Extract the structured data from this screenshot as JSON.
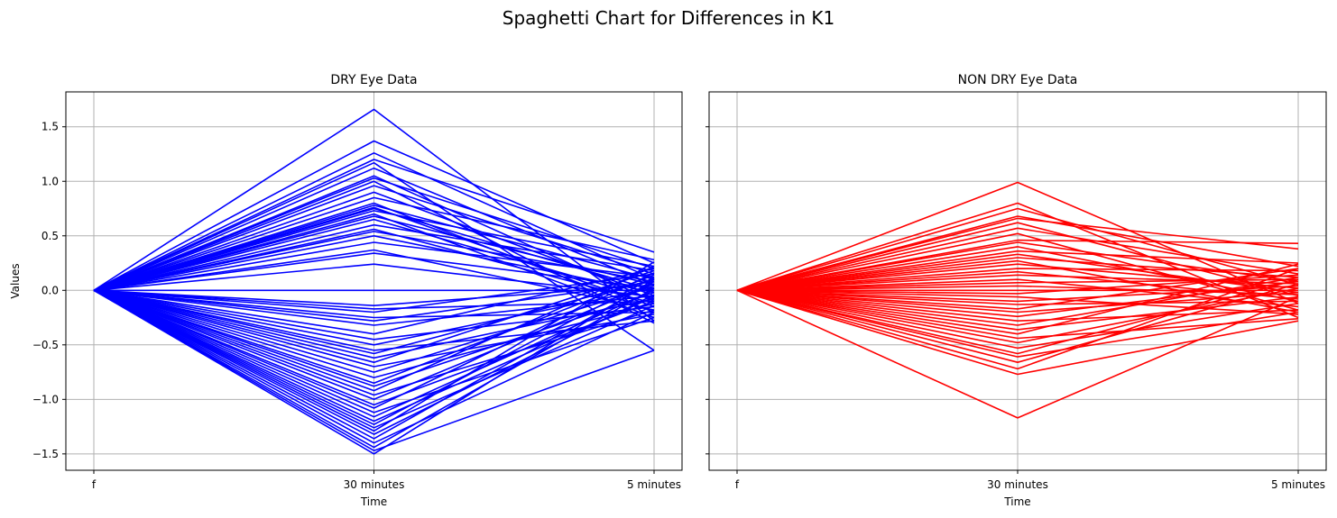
{
  "figure": {
    "suptitle": "Spaghetti Chart for Differences in K1"
  },
  "chart_data": [
    {
      "type": "line",
      "title": "DRY Eye Data",
      "xlabel": "Time",
      "ylabel": "Values",
      "x": [
        "f",
        "30 minutes",
        "5 minutes"
      ],
      "ylim": [
        -1.65,
        1.82
      ],
      "yticks": [
        -1.5,
        -1.0,
        -0.5,
        0.0,
        0.5,
        1.0,
        1.5
      ],
      "ytick_labels": [
        "−1.5",
        "−1.0",
        "−0.5",
        "0.0",
        "0.5",
        "1.0",
        "1.5"
      ],
      "grid": true,
      "color": "#0000ff",
      "series": [
        {
          "values": [
            0,
            1.66,
            -0.28
          ]
        },
        {
          "values": [
            0,
            1.37,
            0.25
          ]
        },
        {
          "values": [
            0,
            1.26,
            0.1
          ]
        },
        {
          "values": [
            0,
            1.2,
            0.35
          ]
        },
        {
          "values": [
            0,
            1.17,
            -0.55
          ]
        },
        {
          "values": [
            0,
            1.12,
            0.05
          ]
        },
        {
          "values": [
            0,
            1.05,
            -0.1
          ]
        },
        {
          "values": [
            0,
            1.03,
            0.2
          ]
        },
        {
          "values": [
            0,
            1.0,
            -0.3
          ]
        },
        {
          "values": [
            0,
            0.96,
            0.15
          ]
        },
        {
          "values": [
            0,
            0.9,
            -0.05
          ]
        },
        {
          "values": [
            0,
            0.85,
            0.28
          ]
        },
        {
          "values": [
            0,
            0.8,
            -0.2
          ]
        },
        {
          "values": [
            0,
            0.78,
            0.1
          ]
        },
        {
          "values": [
            0,
            0.76,
            -0.15
          ]
        },
        {
          "values": [
            0,
            0.75,
            0.0
          ]
        },
        {
          "values": [
            0,
            0.73,
            0.22
          ]
        },
        {
          "values": [
            0,
            0.7,
            -0.25
          ]
        },
        {
          "values": [
            0,
            0.68,
            0.05
          ]
        },
        {
          "values": [
            0,
            0.65,
            -0.08
          ]
        },
        {
          "values": [
            0,
            0.6,
            0.18
          ]
        },
        {
          "values": [
            0,
            0.56,
            -0.12
          ]
        },
        {
          "values": [
            0,
            0.54,
            0.08
          ]
        },
        {
          "values": [
            0,
            0.5,
            -0.02
          ]
        },
        {
          "values": [
            0,
            0.44,
            0.12
          ]
        },
        {
          "values": [
            0,
            0.37,
            -0.18
          ]
        },
        {
          "values": [
            0,
            0.34,
            0.02
          ]
        },
        {
          "values": [
            0,
            0.24,
            -0.06
          ]
        },
        {
          "values": [
            0,
            0.0,
            0.0
          ]
        },
        {
          "values": [
            0,
            -0.14,
            0.05
          ]
        },
        {
          "values": [
            0,
            -0.17,
            -0.1
          ]
        },
        {
          "values": [
            0,
            -0.2,
            0.15
          ]
        },
        {
          "values": [
            0,
            -0.25,
            -0.2
          ]
        },
        {
          "values": [
            0,
            -0.28,
            0.08
          ]
        },
        {
          "values": [
            0,
            -0.32,
            -0.05
          ]
        },
        {
          "values": [
            0,
            -0.4,
            0.2
          ]
        },
        {
          "values": [
            0,
            -0.45,
            -0.15
          ]
        },
        {
          "values": [
            0,
            -0.5,
            0.02
          ]
        },
        {
          "values": [
            0,
            -0.55,
            -0.28
          ]
        },
        {
          "values": [
            0,
            -0.58,
            0.1
          ]
        },
        {
          "values": [
            0,
            -0.62,
            -0.08
          ]
        },
        {
          "values": [
            0,
            -0.66,
            0.18
          ]
        },
        {
          "values": [
            0,
            -0.7,
            -0.22
          ]
        },
        {
          "values": [
            0,
            -0.75,
            0.04
          ]
        },
        {
          "values": [
            0,
            -0.8,
            -0.12
          ]
        },
        {
          "values": [
            0,
            -0.85,
            0.14
          ]
        },
        {
          "values": [
            0,
            -0.88,
            -0.02
          ]
        },
        {
          "values": [
            0,
            -0.92,
            0.22
          ]
        },
        {
          "values": [
            0,
            -0.96,
            -0.18
          ]
        },
        {
          "values": [
            0,
            -1.0,
            0.06
          ]
        },
        {
          "values": [
            0,
            -1.05,
            -0.1
          ]
        },
        {
          "values": [
            0,
            -1.08,
            0.16
          ]
        },
        {
          "values": [
            0,
            -1.12,
            -0.25
          ]
        },
        {
          "values": [
            0,
            -1.16,
            0.0
          ]
        },
        {
          "values": [
            0,
            -1.2,
            -0.06
          ]
        },
        {
          "values": [
            0,
            -1.23,
            0.12
          ]
        },
        {
          "values": [
            0,
            -1.26,
            -0.14
          ]
        },
        {
          "values": [
            0,
            -1.29,
            0.26
          ]
        },
        {
          "values": [
            0,
            -1.32,
            -0.04
          ]
        },
        {
          "values": [
            0,
            -1.36,
            0.08
          ]
        },
        {
          "values": [
            0,
            -1.4,
            -0.2
          ]
        },
        {
          "values": [
            0,
            -1.44,
            0.02
          ]
        },
        {
          "values": [
            0,
            -1.47,
            -0.55
          ]
        },
        {
          "values": [
            0,
            -1.5,
            0.1
          ]
        }
      ]
    },
    {
      "type": "line",
      "title": "NON DRY Eye Data",
      "xlabel": "Time",
      "ylabel": "",
      "x": [
        "f",
        "30 minutes",
        "5 minutes"
      ],
      "ylim": [
        -1.65,
        1.82
      ],
      "yticks": [
        -1.5,
        -1.0,
        -0.5,
        0.0,
        0.5,
        1.0,
        1.5
      ],
      "grid": true,
      "color": "#ff0000",
      "series": [
        {
          "values": [
            0,
            0.99,
            -0.12
          ]
        },
        {
          "values": [
            0,
            0.8,
            -0.25
          ]
        },
        {
          "values": [
            0,
            0.75,
            0.05
          ]
        },
        {
          "values": [
            0,
            0.68,
            0.22
          ]
        },
        {
          "values": [
            0,
            0.66,
            0.38
          ]
        },
        {
          "values": [
            0,
            0.62,
            -0.05
          ]
        },
        {
          "values": [
            0,
            0.57,
            0.15
          ]
        },
        {
          "values": [
            0,
            0.52,
            -0.18
          ]
        },
        {
          "values": [
            0,
            0.46,
            0.43
          ]
        },
        {
          "values": [
            0,
            0.44,
            0.08
          ]
        },
        {
          "values": [
            0,
            0.4,
            -0.1
          ]
        },
        {
          "values": [
            0,
            0.36,
            0.25
          ]
        },
        {
          "values": [
            0,
            0.33,
            -0.02
          ]
        },
        {
          "values": [
            0,
            0.3,
            0.12
          ]
        },
        {
          "values": [
            0,
            0.27,
            -0.2
          ]
        },
        {
          "values": [
            0,
            0.24,
            0.02
          ]
        },
        {
          "values": [
            0,
            0.2,
            0.18
          ]
        },
        {
          "values": [
            0,
            0.17,
            -0.08
          ]
        },
        {
          "values": [
            0,
            0.14,
            0.06
          ]
        },
        {
          "values": [
            0,
            0.1,
            -0.15
          ]
        },
        {
          "values": [
            0,
            0.07,
            0.1
          ]
        },
        {
          "values": [
            0,
            0.04,
            -0.04
          ]
        },
        {
          "values": [
            0,
            0.0,
            0.0
          ]
        },
        {
          "values": [
            0,
            -0.03,
            0.14
          ]
        },
        {
          "values": [
            0,
            -0.06,
            -0.22
          ]
        },
        {
          "values": [
            0,
            -0.1,
            0.04
          ]
        },
        {
          "values": [
            0,
            -0.13,
            -0.1
          ]
        },
        {
          "values": [
            0,
            -0.17,
            0.2
          ]
        },
        {
          "values": [
            0,
            -0.2,
            -0.02
          ]
        },
        {
          "values": [
            0,
            -0.24,
            0.08
          ]
        },
        {
          "values": [
            0,
            -0.28,
            -0.18
          ]
        },
        {
          "values": [
            0,
            -0.32,
            0.12
          ]
        },
        {
          "values": [
            0,
            -0.36,
            -0.06
          ]
        },
        {
          "values": [
            0,
            -0.4,
            0.24
          ]
        },
        {
          "values": [
            0,
            -0.44,
            -0.26
          ]
        },
        {
          "values": [
            0,
            -0.48,
            0.02
          ]
        },
        {
          "values": [
            0,
            -0.53,
            -0.12
          ]
        },
        {
          "values": [
            0,
            -0.58,
            0.1
          ]
        },
        {
          "values": [
            0,
            -0.61,
            -0.2
          ]
        },
        {
          "values": [
            0,
            -0.66,
            0.06
          ]
        },
        {
          "values": [
            0,
            -0.72,
            0.2
          ]
        },
        {
          "values": [
            0,
            -0.77,
            -0.28
          ]
        },
        {
          "values": [
            0,
            -1.17,
            -0.06
          ]
        }
      ]
    }
  ]
}
